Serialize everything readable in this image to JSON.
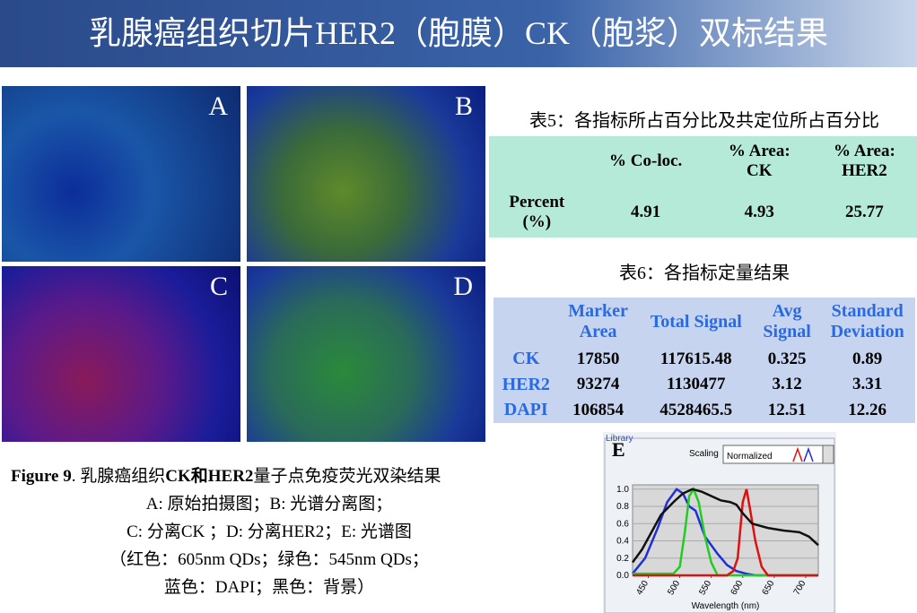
{
  "header": {
    "title": "乳腺癌组织切片HER2（胞膜）CK（胞浆）双标结果"
  },
  "panels": [
    "A",
    "B",
    "C",
    "D"
  ],
  "table5": {
    "title": "表5：各指标所占百分比及共定位所占百分比",
    "columns": [
      "% Co-loc.",
      "% Area:\nCK",
      "% Area:\nHER2"
    ],
    "row_label": "Percent\n(%)",
    "values": [
      "4.91",
      "4.93",
      "25.77"
    ]
  },
  "table6": {
    "title": "表6：各指标定量结果",
    "columns": [
      "Marker\nArea",
      "Total Signal",
      "Avg\nSignal",
      "Standard\nDeviation"
    ],
    "rows": [
      [
        "CK",
        "17850",
        "117615.48",
        "0.325",
        "0.89"
      ],
      [
        "HER2",
        "93274",
        "1130477",
        "3.12",
        "3.31"
      ],
      [
        "DAPI",
        "106854",
        "4528465.5",
        "12.51",
        "12.26"
      ]
    ]
  },
  "caption": {
    "line1": [
      "Figure 9",
      ". 乳腺癌组织",
      "CK和HER2",
      "量子点免疫荧光双染结果"
    ],
    "lines": [
      "A: 原始拍摄图；B: 光谱分离图；",
      "C: 分离CK ；D: 分离HER2；E: 光谱图",
      "（红色：605nm QDs；绿色：545nm QDs；",
      "蓝色：DAPI；黑色：背景）"
    ]
  },
  "spectrum": {
    "library": "Library",
    "label": "E",
    "scaling": "Scaling",
    "scaling_value": "Normalized"
  },
  "chart_data": {
    "type": "line",
    "x_label": "Wavelength (nm)",
    "xlim": [
      425,
      720
    ],
    "ylim": [
      0,
      1.05
    ],
    "xticks": [
      450,
      500,
      550,
      600,
      650,
      700
    ],
    "yticks": [
      {
        "value": 0,
        "label": "0.0"
      },
      0.2,
      0.4,
      0.6,
      0.8,
      {
        "value": 1,
        "label": "1.0"
      }
    ],
    "series": [
      {
        "name": "DAPI",
        "color": "#1f2fd8",
        "x": [
          425,
          445,
          465,
          480,
          495,
          505,
          515,
          525,
          540,
          560,
          575,
          590,
          605,
          620,
          720
        ],
        "values": [
          0.02,
          0.2,
          0.55,
          0.85,
          1.0,
          0.95,
          0.8,
          0.75,
          0.45,
          0.25,
          0.12,
          0.05,
          0.02,
          0.0,
          0.0
        ]
      },
      {
        "name": "545nm QDs",
        "color": "#22cc22",
        "x": [
          425,
          490,
          500,
          508,
          515,
          522,
          530,
          540,
          550,
          560,
          720
        ],
        "values": [
          0.02,
          0.02,
          0.1,
          0.5,
          0.92,
          1.0,
          0.85,
          0.45,
          0.15,
          0.0,
          0.0
        ]
      },
      {
        "name": "605nm QDs",
        "color": "#e01010",
        "x": [
          425,
          575,
          585,
          592,
          600,
          606,
          612,
          620,
          630,
          640,
          720
        ],
        "values": [
          0.0,
          0.0,
          0.05,
          0.2,
          0.85,
          1.0,
          0.75,
          0.4,
          0.1,
          0.0,
          0.0
        ]
      },
      {
        "name": "背景",
        "color": "#111111",
        "x": [
          425,
          440,
          455,
          470,
          490,
          505,
          520,
          535,
          550,
          565,
          580,
          590,
          600,
          615,
          640,
          665,
          690,
          705,
          720
        ],
        "values": [
          0.15,
          0.3,
          0.5,
          0.7,
          0.85,
          0.95,
          1.0,
          0.97,
          0.92,
          0.87,
          0.85,
          0.82,
          0.72,
          0.6,
          0.55,
          0.52,
          0.5,
          0.45,
          0.35
        ]
      }
    ]
  }
}
